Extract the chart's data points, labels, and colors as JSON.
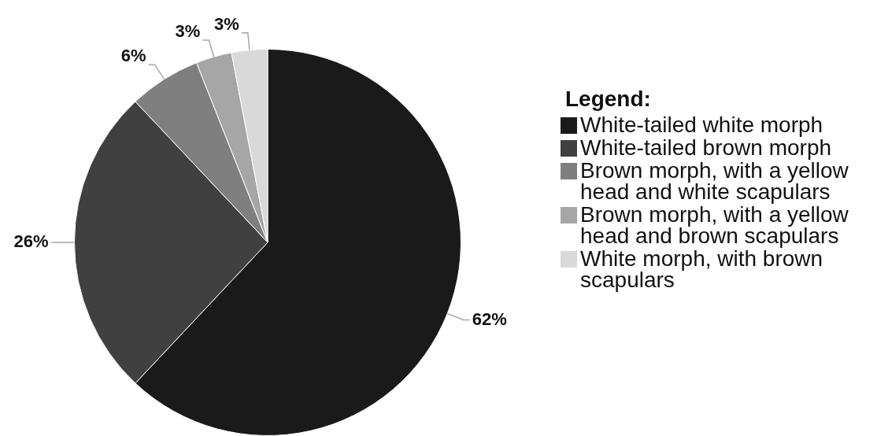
{
  "chart_data": {
    "type": "pie",
    "legend_title": "Legend:",
    "legend": "right",
    "categories": [
      "White-tailed white morph",
      "White-tailed brown morph",
      "Brown morph, with a yellow head and white scapulars",
      "Brown morph, with a yellow head and brown scapulars",
      "White morph, with brown scapulars"
    ],
    "values": [
      62,
      26,
      6,
      3,
      3
    ],
    "colors": [
      "#1a1a1a",
      "#404040",
      "#7f7f7f",
      "#a6a6a6",
      "#d9d9d9"
    ],
    "value_labels": [
      "62%",
      "26%",
      "6%",
      "3%",
      "3%"
    ]
  }
}
